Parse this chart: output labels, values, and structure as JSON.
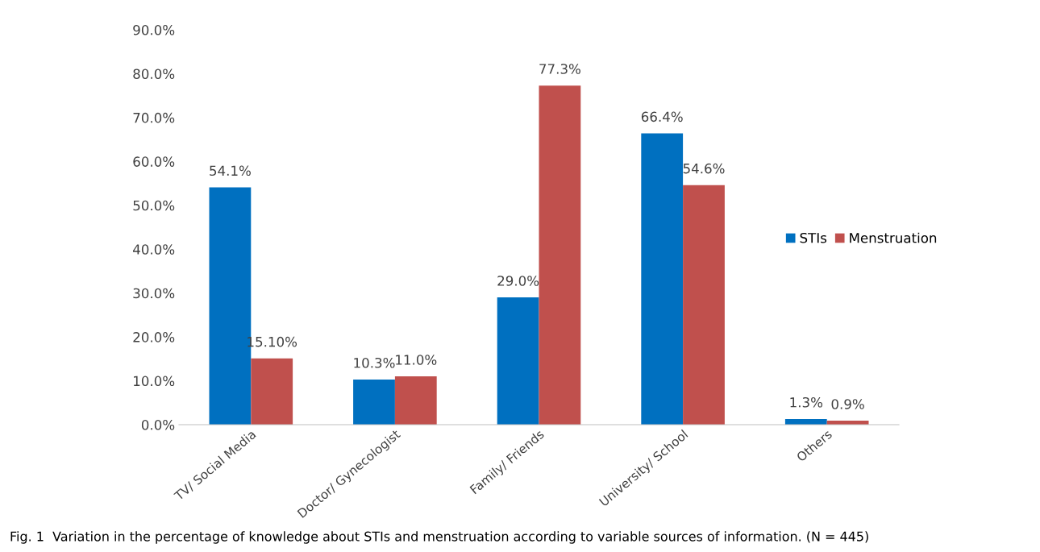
{
  "chart_data": {
    "type": "bar",
    "categories": [
      "TV/ Social Media",
      "Doctor/ Gynecologist",
      "Family/ Friends",
      "University/ School",
      "Others"
    ],
    "series": [
      {
        "name": "STIs",
        "color": "#0070c0",
        "values": [
          54.1,
          10.3,
          29.0,
          66.4,
          1.3
        ],
        "value_labels": [
          "54.1%",
          "10.3%",
          "29.0%",
          "66.4%",
          "1.3%"
        ]
      },
      {
        "name": "Menstruation",
        "color": "#c0504d",
        "values": [
          15.1,
          11.0,
          77.3,
          54.6,
          0.9
        ],
        "value_labels": [
          "15.10%",
          "11.0%",
          "77.3%",
          "54.6%",
          "0.9%"
        ]
      }
    ],
    "ylim": [
      0,
      90
    ],
    "yticks": [
      {
        "value": 0,
        "label": "0.0%"
      },
      {
        "value": 10,
        "label": "10.0%"
      },
      {
        "value": 20,
        "label": "20.0%"
      },
      {
        "value": 30,
        "label": "30.0%"
      },
      {
        "value": 40,
        "label": "40.0%"
      },
      {
        "value": 50,
        "label": "50.0%"
      },
      {
        "value": 60,
        "label": "60.0%"
      },
      {
        "value": 70,
        "label": "70.0%"
      },
      {
        "value": 80,
        "label": "80.0%"
      },
      {
        "value": 90,
        "label": "90.0%"
      }
    ],
    "grid": false,
    "legend": "right",
    "annotations": [
      "Fig. 1  Variation in the percentage of knowledge about STIs and menstruation according to variable sources of information. (N = 445)"
    ]
  }
}
